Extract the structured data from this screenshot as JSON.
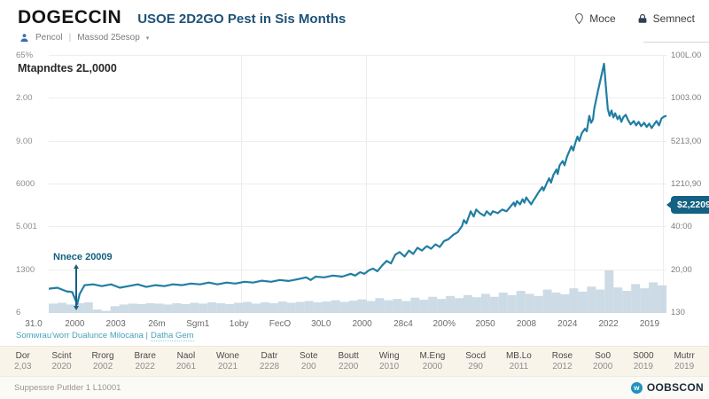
{
  "header": {
    "title": "DOGECCIN",
    "subtitle": "USOE 2D2GO Pest in Sis Months",
    "source_label": "Pencol",
    "separator": "|",
    "dataset_label": "Massod 25esop",
    "caret": "▾",
    "nav": {
      "mode_label": "Moce",
      "connect_label": "Semnect"
    }
  },
  "stats": {
    "caption": "Mtapndtes 2L,0000"
  },
  "chart_data": {
    "type": "line",
    "title": "USOE 2D2GO Pest in Sis Months",
    "grid": true,
    "y_axis_left_ticks": [
      "65%",
      "2.00",
      "9.00",
      "6000",
      "5.001",
      "1300",
      "6"
    ],
    "y_axis_right_ticks": [
      "100L.00",
      "1003.00",
      "5213,00",
      "1210,90",
      "40:00",
      "20,00",
      "130"
    ],
    "x_ticks": [
      "31.0",
      "2000",
      "2003",
      "26m",
      "Sgm1",
      "1oby",
      "FecO",
      "30L0",
      "2000",
      "28c4",
      "200%",
      "2050",
      "2008",
      "2024",
      "2022",
      "2019"
    ],
    "annotation": {
      "text": "Nnece 20009"
    },
    "last_price_badge": "$2,2209",
    "colors": {
      "line": "#217ea3",
      "volume": "#c6d7e2",
      "badge": "#136183"
    },
    "series": [
      {
        "name": "price",
        "type": "line",
        "points_xy_percent": [
          [
            0,
            9.4
          ],
          [
            1.4,
            9.8
          ],
          [
            2.9,
            8.4
          ],
          [
            3.8,
            8.1
          ],
          [
            4.6,
            3.4
          ],
          [
            5,
            7.4
          ],
          [
            5.8,
            10.8
          ],
          [
            7.2,
            11.1
          ],
          [
            8.6,
            10.4
          ],
          [
            10.1,
            11.1
          ],
          [
            11.5,
            9.8
          ],
          [
            12.9,
            10.4
          ],
          [
            14.4,
            11.1
          ],
          [
            15.8,
            10.1
          ],
          [
            17.3,
            10.8
          ],
          [
            18.7,
            10.4
          ],
          [
            20.1,
            11.1
          ],
          [
            21.6,
            10.8
          ],
          [
            23,
            11.4
          ],
          [
            24.5,
            11.1
          ],
          [
            25.9,
            11.8
          ],
          [
            27.3,
            11.1
          ],
          [
            28.8,
            11.8
          ],
          [
            30.2,
            11.4
          ],
          [
            31.7,
            12.1
          ],
          [
            33.1,
            11.8
          ],
          [
            34.5,
            12.5
          ],
          [
            36,
            12.1
          ],
          [
            37.4,
            12.8
          ],
          [
            38.8,
            12.4
          ],
          [
            40.3,
            13.1
          ],
          [
            41.7,
            13.8
          ],
          [
            42.4,
            12.8
          ],
          [
            43.2,
            14.1
          ],
          [
            44.6,
            13.8
          ],
          [
            46,
            14.5
          ],
          [
            47.5,
            14.1
          ],
          [
            48.9,
            15.2
          ],
          [
            49.6,
            14.5
          ],
          [
            50.4,
            15.8
          ],
          [
            51.1,
            15.2
          ],
          [
            51.8,
            16.5
          ],
          [
            52.5,
            17.2
          ],
          [
            53.2,
            16.2
          ],
          [
            54,
            18.5
          ],
          [
            54.7,
            20.2
          ],
          [
            55.4,
            19.2
          ],
          [
            56.1,
            22.6
          ],
          [
            56.8,
            23.6
          ],
          [
            57.6,
            21.9
          ],
          [
            58.3,
            24.2
          ],
          [
            59,
            22.9
          ],
          [
            59.7,
            25.3
          ],
          [
            60.4,
            24.2
          ],
          [
            61.2,
            25.9
          ],
          [
            61.9,
            24.9
          ],
          [
            62.6,
            26.6
          ],
          [
            63.3,
            25.6
          ],
          [
            64,
            27.9
          ],
          [
            64.7,
            28.6
          ],
          [
            65.5,
            30.3
          ],
          [
            66.2,
            31.3
          ],
          [
            66.9,
            33.7
          ],
          [
            67.2,
            36
          ],
          [
            67.6,
            34.7
          ],
          [
            68.1,
            38
          ],
          [
            68.3,
            39.4
          ],
          [
            68.8,
            37.4
          ],
          [
            69.2,
            40.1
          ],
          [
            69.8,
            38.7
          ],
          [
            70.5,
            37.7
          ],
          [
            70.9,
            39.4
          ],
          [
            71.5,
            38
          ],
          [
            71.9,
            39.4
          ],
          [
            72.7,
            38.7
          ],
          [
            73.4,
            40.1
          ],
          [
            74.1,
            39.4
          ],
          [
            74.8,
            41.4
          ],
          [
            75.3,
            42.8
          ],
          [
            75.5,
            41.4
          ],
          [
            75.8,
            43.4
          ],
          [
            76.3,
            42.1
          ],
          [
            76.7,
            44.1
          ],
          [
            77,
            42.8
          ],
          [
            77.3,
            44.8
          ],
          [
            77.7,
            43.4
          ],
          [
            78.1,
            42.1
          ],
          [
            78.4,
            43.4
          ],
          [
            78.8,
            44.8
          ],
          [
            79.3,
            46.8
          ],
          [
            79.9,
            48.8
          ],
          [
            80.1,
            47.5
          ],
          [
            80.6,
            50.2
          ],
          [
            81,
            52.2
          ],
          [
            81.3,
            50.5
          ],
          [
            81.7,
            53.5
          ],
          [
            82.2,
            55.6
          ],
          [
            82.4,
            53.9
          ],
          [
            82.7,
            57.2
          ],
          [
            83.2,
            58.9
          ],
          [
            83.5,
            57.2
          ],
          [
            83.9,
            60.6
          ],
          [
            84.2,
            62.3
          ],
          [
            84.6,
            64.6
          ],
          [
            84.9,
            63
          ],
          [
            85.3,
            66.3
          ],
          [
            85.6,
            68.4
          ],
          [
            85.9,
            66.7
          ],
          [
            86.3,
            69.7
          ],
          [
            86.8,
            71.4
          ],
          [
            87.1,
            70.4
          ],
          [
            87.5,
            76.4
          ],
          [
            87.8,
            73.7
          ],
          [
            88.1,
            75.1
          ],
          [
            88.3,
            79.1
          ],
          [
            88.9,
            85.9
          ],
          [
            89.9,
            96.6
          ],
          [
            90.2,
            87.5
          ],
          [
            90.5,
            79.1
          ],
          [
            90.8,
            76.4
          ],
          [
            91.1,
            78.5
          ],
          [
            91.4,
            75.8
          ],
          [
            91.7,
            77.4
          ],
          [
            92.1,
            75.1
          ],
          [
            92.4,
            76.4
          ],
          [
            92.7,
            74.1
          ],
          [
            93,
            75.8
          ],
          [
            93.4,
            76.8
          ],
          [
            93.8,
            74.7
          ],
          [
            94.2,
            73.1
          ],
          [
            94.7,
            74.4
          ],
          [
            95.1,
            72.7
          ],
          [
            95.5,
            74.1
          ],
          [
            95.9,
            72.4
          ],
          [
            96.4,
            73.7
          ],
          [
            96.8,
            72.1
          ],
          [
            97.2,
            73.4
          ],
          [
            97.6,
            71.7
          ],
          [
            98,
            73.1
          ],
          [
            98.4,
            74.4
          ],
          [
            98.8,
            72.7
          ],
          [
            99.2,
            75.4
          ],
          [
            99.6,
            76.1
          ],
          [
            100,
            76.4
          ]
        ]
      },
      {
        "name": "volume",
        "type": "area",
        "values_percent": [
          22,
          24,
          20,
          23,
          25,
          8,
          5,
          16,
          20,
          22,
          21,
          23,
          22,
          20,
          23,
          21,
          24,
          22,
          25,
          23,
          21,
          24,
          26,
          22,
          25,
          23,
          27,
          24,
          26,
          28,
          25,
          27,
          30,
          26,
          29,
          32,
          28,
          35,
          30,
          33,
          28,
          36,
          31,
          38,
          33,
          40,
          35,
          42,
          37,
          45,
          38,
          48,
          42,
          52,
          45,
          40,
          55,
          48,
          44,
          58,
          50,
          62,
          55,
          100,
          60,
          52,
          68,
          58,
          72,
          65
        ]
      }
    ]
  },
  "footnote": {
    "link_main": "Somwrau'worr Dualunce Milocana |",
    "link_tail": "Datha Gem"
  },
  "range_bar": {
    "items": [
      {
        "label": "Dor",
        "year": "2,03"
      },
      {
        "label": "Scint",
        "year": "2020"
      },
      {
        "label": "Rrorg",
        "year": "2002"
      },
      {
        "label": "Brare",
        "year": "2022"
      },
      {
        "label": "Naol",
        "year": "2061"
      },
      {
        "label": "Wone",
        "year": "2021"
      },
      {
        "label": "Datr",
        "year": "2228"
      },
      {
        "label": "Sote",
        "year": "200"
      },
      {
        "label": "Boutt",
        "year": "2200"
      },
      {
        "label": "Wing",
        "year": "2010"
      },
      {
        "label": "M.Eng",
        "year": "2000"
      },
      {
        "label": "Socd",
        "year": "290"
      },
      {
        "label": "MB.Lo",
        "year": "2011"
      },
      {
        "label": "Rose",
        "year": "2012"
      },
      {
        "label": "So0",
        "year": "2000"
      },
      {
        "label": "S000",
        "year": "2019"
      },
      {
        "label": "Mutrr",
        "year": "2019"
      }
    ]
  },
  "footer": {
    "left": "Suppessre Putlder 1 L10001",
    "brand": "OOBSCON",
    "logo_glyph": "w"
  }
}
